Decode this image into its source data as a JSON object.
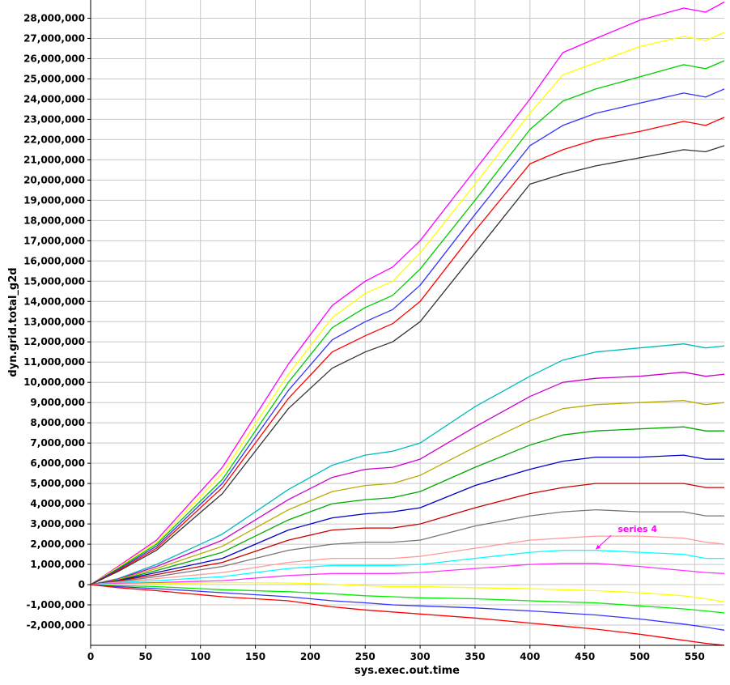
{
  "chart_data": {
    "type": "line",
    "xlabel": "sys.exec.out.time",
    "ylabel": "dyn.grid.total_g2d",
    "xlim": [
      0,
      577
    ],
    "ylim": [
      -3000000,
      28900000
    ],
    "grid": true,
    "x_ticks": [
      0,
      50,
      100,
      150,
      200,
      250,
      300,
      350,
      400,
      450,
      500,
      550
    ],
    "y_ticks": [
      -2000000,
      -1000000,
      0,
      1000000,
      2000000,
      3000000,
      4000000,
      5000000,
      6000000,
      7000000,
      8000000,
      9000000,
      10000000,
      11000000,
      12000000,
      13000000,
      14000000,
      15000000,
      16000000,
      17000000,
      18000000,
      19000000,
      20000000,
      21000000,
      22000000,
      23000000,
      24000000,
      25000000,
      26000000,
      27000000,
      28000000
    ],
    "x_tick_labels": [
      "0",
      "50",
      "100",
      "150",
      "200",
      "250",
      "300",
      "350",
      "400",
      "450",
      "500",
      "550"
    ],
    "y_tick_labels": [
      "-2,000,000",
      "-1,000,000",
      "0",
      "1,000,000",
      "2,000,000",
      "3,000,000",
      "4,000,000",
      "5,000,000",
      "6,000,000",
      "7,000,000",
      "8,000,000",
      "9,000,000",
      "10,000,000",
      "11,000,000",
      "12,000,000",
      "13,000,000",
      "14,000,000",
      "15,000,000",
      "16,000,000",
      "17,000,000",
      "18,000,000",
      "19,000,000",
      "20,000,000",
      "21,000,000",
      "22,000,000",
      "23,000,000",
      "24,000,000",
      "25,000,000",
      "26,000,000",
      "27,000,000",
      "28,000,000"
    ],
    "x": [
      0,
      25,
      60,
      120,
      180,
      220,
      250,
      275,
      300,
      350,
      400,
      430,
      460,
      500,
      540,
      560,
      577
    ],
    "series": [
      {
        "color": "#ff00ff",
        "values": [
          0,
          900000,
          2200000,
          5800000,
          10900000,
          13800000,
          15000000,
          15700000,
          17000000,
          20500000,
          24000000,
          26300000,
          27000000,
          27900000,
          28500000,
          28300000,
          28800000
        ]
      },
      {
        "color": "#ffff00",
        "values": [
          0,
          850000,
          2100000,
          5500000,
          10400000,
          13200000,
          14400000,
          15000000,
          16400000,
          19800000,
          23300000,
          25200000,
          25800000,
          26600000,
          27100000,
          26900000,
          27300000
        ]
      },
      {
        "color": "#00cc00",
        "values": [
          0,
          800000,
          2000000,
          5200000,
          10000000,
          12700000,
          13700000,
          14300000,
          15600000,
          19000000,
          22500000,
          23900000,
          24500000,
          25100000,
          25700000,
          25500000,
          25900000
        ]
      },
      {
        "color": "#3333ff",
        "values": [
          0,
          750000,
          1900000,
          5000000,
          9600000,
          12100000,
          13000000,
          13600000,
          14800000,
          18300000,
          21700000,
          22700000,
          23300000,
          23800000,
          24300000,
          24100000,
          24500000
        ]
      },
      {
        "color": "#ff0000",
        "values": [
          0,
          700000,
          1800000,
          4800000,
          9200000,
          11500000,
          12300000,
          12900000,
          14000000,
          17500000,
          20800000,
          21500000,
          22000000,
          22400000,
          22900000,
          22700000,
          23100000
        ]
      },
      {
        "color": "#333333",
        "values": [
          0,
          650000,
          1700000,
          4500000,
          8700000,
          10700000,
          11500000,
          12000000,
          13000000,
          16400000,
          19800000,
          20300000,
          20700000,
          21100000,
          21500000,
          21400000,
          21700000
        ]
      },
      {
        "color": "#00bbbb",
        "values": [
          0,
          300000,
          1000000,
          2500000,
          4700000,
          5900000,
          6400000,
          6600000,
          7000000,
          8800000,
          10300000,
          11100000,
          11500000,
          11700000,
          11900000,
          11700000,
          11800000
        ]
      },
      {
        "color": "#cc00cc",
        "values": [
          0,
          280000,
          900000,
          2200000,
          4200000,
          5300000,
          5700000,
          5800000,
          6200000,
          7800000,
          9300000,
          10000000,
          10200000,
          10300000,
          10500000,
          10300000,
          10400000
        ]
      },
      {
        "color": "#bbaa00",
        "values": [
          0,
          250000,
          800000,
          1900000,
          3700000,
          4600000,
          4900000,
          5000000,
          5400000,
          6800000,
          8100000,
          8700000,
          8900000,
          9000000,
          9100000,
          8900000,
          9000000
        ]
      },
      {
        "color": "#00aa00",
        "values": [
          0,
          220000,
          700000,
          1600000,
          3200000,
          4000000,
          4200000,
          4300000,
          4600000,
          5800000,
          6900000,
          7400000,
          7600000,
          7700000,
          7800000,
          7600000,
          7600000
        ]
      },
      {
        "color": "#0000cc",
        "values": [
          0,
          200000,
          600000,
          1300000,
          2700000,
          3300000,
          3500000,
          3600000,
          3800000,
          4900000,
          5700000,
          6100000,
          6300000,
          6300000,
          6400000,
          6200000,
          6200000
        ]
      },
      {
        "color": "#cc0000",
        "values": [
          0,
          180000,
          500000,
          1100000,
          2200000,
          2700000,
          2800000,
          2800000,
          3000000,
          3800000,
          4500000,
          4800000,
          5000000,
          5000000,
          5000000,
          4800000,
          4800000
        ]
      },
      {
        "color": "#777777",
        "values": [
          0,
          150000,
          400000,
          900000,
          1700000,
          2000000,
          2100000,
          2100000,
          2200000,
          2900000,
          3400000,
          3600000,
          3700000,
          3600000,
          3600000,
          3400000,
          3400000
        ]
      },
      {
        "color": "#ff9999",
        "values": [
          0,
          120000,
          300000,
          600000,
          1100000,
          1300000,
          1300000,
          1300000,
          1400000,
          1800000,
          2200000,
          2300000,
          2400000,
          2400000,
          2300000,
          2100000,
          2000000
        ]
      },
      {
        "color": "#00ffff",
        "values": [
          0,
          100000,
          200000,
          400000,
          800000,
          950000,
          950000,
          950000,
          1000000,
          1300000,
          1600000,
          1700000,
          1700000,
          1600000,
          1500000,
          1300000,
          1300000
        ]
      },
      {
        "color": "#ff33ff",
        "values": [
          0,
          60000,
          100000,
          200000,
          450000,
          550000,
          550000,
          550000,
          600000,
          800000,
          1000000,
          1050000,
          1050000,
          900000,
          700000,
          600000,
          550000
        ]
      },
      {
        "color": "#ffff00",
        "values": [
          0,
          20000,
          50000,
          100000,
          80000,
          20000,
          -50000,
          -100000,
          -100000,
          -150000,
          -200000,
          -250000,
          -300000,
          -400000,
          -550000,
          -700000,
          -850000
        ]
      },
      {
        "color": "#00ee00",
        "values": [
          0,
          -50000,
          -100000,
          -250000,
          -350000,
          -450000,
          -550000,
          -600000,
          -650000,
          -700000,
          -800000,
          -850000,
          -900000,
          -1050000,
          -1200000,
          -1300000,
          -1400000
        ]
      },
      {
        "color": "#3333ff",
        "values": [
          0,
          -100000,
          -200000,
          -400000,
          -600000,
          -800000,
          -900000,
          -1000000,
          -1050000,
          -1150000,
          -1300000,
          -1400000,
          -1500000,
          -1700000,
          -1950000,
          -2100000,
          -2250000
        ]
      },
      {
        "color": "#ff0000",
        "values": [
          0,
          -150000,
          -300000,
          -600000,
          -800000,
          -1100000,
          -1250000,
          -1350000,
          -1450000,
          -1650000,
          -1900000,
          -2050000,
          -2200000,
          -2450000,
          -2750000,
          -2900000,
          -3000000
        ]
      }
    ],
    "annotations": [
      {
        "text": "series 4",
        "x": 480,
        "y": 2600000,
        "arrow_to": [
          460,
          1750000
        ],
        "color": "#ff00ff"
      }
    ]
  }
}
